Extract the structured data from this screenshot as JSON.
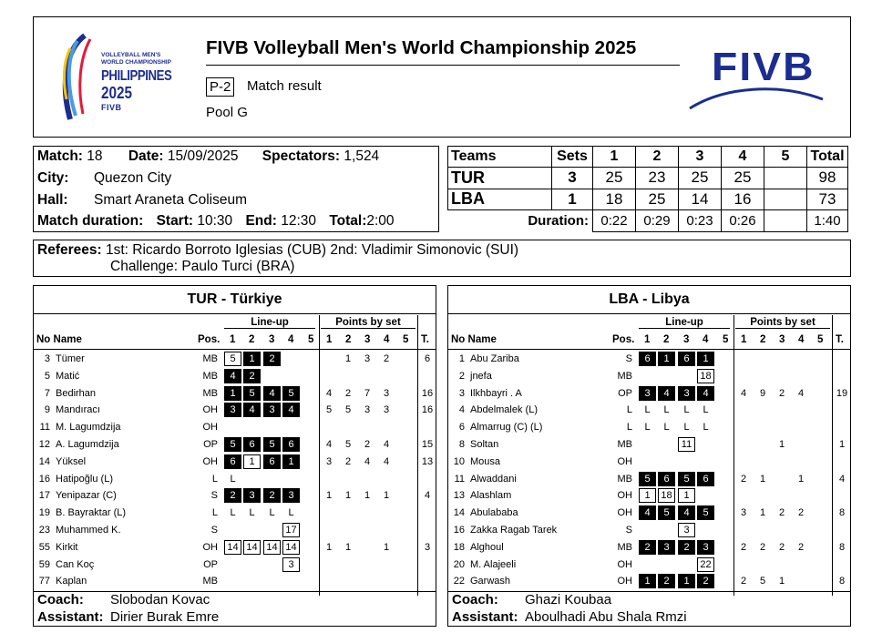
{
  "header": {
    "event_logo": {
      "line1": "VOLLEYBALL MEN'S",
      "line2": "WORLD CHAMPIONSHIP",
      "line3": "PHILIPPINES",
      "line4": "2025",
      "line5": "FIVB"
    },
    "title": "FIVB Volleyball Men's World Championship 2025",
    "doc_code": "P-2",
    "doc_name": "Match result",
    "pool": "Pool G",
    "fivb_logo": "FIVB",
    "colors": {
      "brand": "#1b2d8f",
      "logo_red": "#e21b3c",
      "logo_yellow": "#f5c400"
    }
  },
  "match": {
    "match_label": "Match:",
    "match_no": "18",
    "date_label": "Date:",
    "date": "15/09/2025",
    "spectators_label": "Spectators:",
    "spectators": "1,524",
    "city_label": "City:",
    "city": "Quezon City",
    "hall_label": "Hall:",
    "hall": "Smart Araneta Coliseum",
    "duration_label": "Match duration:",
    "start_label": "Start:",
    "start": "10:30",
    "end_label": "End:",
    "end": "12:30",
    "total_label": "Total:",
    "total": "2:00"
  },
  "score": {
    "headers": [
      "Teams",
      "Sets",
      "1",
      "2",
      "3",
      "4",
      "5",
      "Total"
    ],
    "teams": [
      {
        "code": "TUR",
        "sets": "3",
        "s1": "25",
        "s2": "23",
        "s3": "25",
        "s4": "25",
        "s5": "",
        "total": "98"
      },
      {
        "code": "LBA",
        "sets": "1",
        "s1": "18",
        "s2": "25",
        "s3": "14",
        "s4": "16",
        "s5": "",
        "total": "73"
      }
    ],
    "duration_label": "Duration:",
    "durations": [
      "0:22",
      "0:29",
      "0:23",
      "0:26",
      "",
      "1:40"
    ]
  },
  "referees": {
    "label": "Referees:",
    "first": "1st: Ricardo Borroto Iglesias (CUB)",
    "second": "2nd: Vladimir Simonovic (SUI)",
    "challenge": "Challenge: Paulo Turci (BRA)"
  },
  "columns": {
    "no_name": "No Name",
    "pos": "Pos.",
    "lineup": "Line-up",
    "points": "Points by set",
    "sets": [
      "1",
      "2",
      "3",
      "4",
      "5"
    ],
    "total": "T."
  },
  "teams": [
    {
      "name": "TUR - Türkiye",
      "coach_label": "Coach:",
      "coach": "Slobodan Kovac",
      "assistant_label": "Assistant:",
      "assistant": "Dirier Burak Emre",
      "players": [
        {
          "no": "3",
          "name": "Tümer",
          "pos": "MB",
          "lineup": [
            [
              "5",
              "sub"
            ],
            [
              "1",
              "start"
            ],
            [
              "2",
              "start"
            ],
            null,
            null
          ],
          "points": [
            "",
            "1",
            "3",
            "2",
            ""
          ],
          "total": "6"
        },
        {
          "no": "5",
          "name": "Matić",
          "pos": "MB",
          "lineup": [
            [
              "4",
              "start"
            ],
            [
              "2",
              "start"
            ],
            null,
            null,
            null
          ],
          "points": [
            "",
            "",
            "",
            "",
            ""
          ],
          "total": ""
        },
        {
          "no": "7",
          "name": "Bedirhan",
          "pos": "MB",
          "lineup": [
            [
              "1",
              "start"
            ],
            [
              "5",
              "start"
            ],
            [
              "4",
              "start"
            ],
            [
              "5",
              "start"
            ],
            null
          ],
          "points": [
            "4",
            "2",
            "7",
            "3",
            ""
          ],
          "total": "16"
        },
        {
          "no": "9",
          "name": "Mandıracı",
          "pos": "OH",
          "lineup": [
            [
              "3",
              "start"
            ],
            [
              "4",
              "start"
            ],
            [
              "3",
              "start"
            ],
            [
              "4",
              "start"
            ],
            null
          ],
          "points": [
            "5",
            "5",
            "3",
            "3",
            ""
          ],
          "total": "16"
        },
        {
          "no": "11",
          "name": "M. Lagumdzija",
          "pos": "OH",
          "lineup": [
            null,
            null,
            null,
            null,
            null
          ],
          "points": [
            "",
            "",
            "",
            "",
            ""
          ],
          "total": ""
        },
        {
          "no": "12",
          "name": "A. Lagumdzija",
          "pos": "OP",
          "lineup": [
            [
              "5",
              "start"
            ],
            [
              "6",
              "start"
            ],
            [
              "5",
              "start"
            ],
            [
              "6",
              "start"
            ],
            null
          ],
          "points": [
            "4",
            "5",
            "2",
            "4",
            ""
          ],
          "total": "15"
        },
        {
          "no": "14",
          "name": "Yüksel",
          "pos": "OH",
          "lineup": [
            [
              "6",
              "start"
            ],
            [
              "1",
              "sub"
            ],
            [
              "6",
              "start"
            ],
            [
              "1",
              "start"
            ],
            null
          ],
          "points": [
            "3",
            "2",
            "4",
            "4",
            ""
          ],
          "total": "13"
        },
        {
          "no": "16",
          "name": "Hatipoğlu (L)",
          "pos": "L",
          "lineup": [
            [
              "L",
              "lib"
            ],
            null,
            null,
            null,
            null
          ],
          "points": [
            "",
            "",
            "",
            "",
            ""
          ],
          "total": ""
        },
        {
          "no": "17",
          "name": "Yenipazar (C)",
          "pos": "S",
          "lineup": [
            [
              "2",
              "start"
            ],
            [
              "3",
              "start"
            ],
            [
              "2",
              "start"
            ],
            [
              "3",
              "start"
            ],
            null
          ],
          "points": [
            "1",
            "1",
            "1",
            "1",
            ""
          ],
          "total": "4"
        },
        {
          "no": "19",
          "name": "B. Bayraktar (L)",
          "pos": "L",
          "lineup": [
            [
              "L",
              "lib"
            ],
            [
              "L",
              "lib"
            ],
            [
              "L",
              "lib"
            ],
            [
              "L",
              "lib"
            ],
            null
          ],
          "points": [
            "",
            "",
            "",
            "",
            ""
          ],
          "total": ""
        },
        {
          "no": "23",
          "name": "Muhammed K.",
          "pos": "S",
          "lineup": [
            null,
            null,
            null,
            [
              "17",
              "sub"
            ],
            null
          ],
          "points": [
            "",
            "",
            "",
            "",
            ""
          ],
          "total": ""
        },
        {
          "no": "55",
          "name": "Kirkit",
          "pos": "OH",
          "lineup": [
            [
              "14",
              "sub"
            ],
            [
              "14",
              "sub"
            ],
            [
              "14",
              "sub"
            ],
            [
              "14",
              "sub"
            ],
            null
          ],
          "points": [
            "1",
            "1",
            "",
            "1",
            ""
          ],
          "total": "3"
        },
        {
          "no": "59",
          "name": "Can Koç",
          "pos": "OP",
          "lineup": [
            null,
            null,
            null,
            [
              "3",
              "sub"
            ],
            null
          ],
          "points": [
            "",
            "",
            "",
            "",
            ""
          ],
          "total": ""
        },
        {
          "no": "77",
          "name": "Kaplan",
          "pos": "MB",
          "lineup": [
            null,
            null,
            null,
            null,
            null
          ],
          "points": [
            "",
            "",
            "",
            "",
            ""
          ],
          "total": ""
        }
      ]
    },
    {
      "name": "LBA - Libya",
      "coach_label": "Coach:",
      "coach": "Ghazi Koubaa",
      "assistant_label": "Assistant:",
      "assistant": "Aboulhadi Abu Shala Rmzi",
      "players": [
        {
          "no": "1",
          "name": "Abu Zariba",
          "pos": "S",
          "lineup": [
            [
              "6",
              "start"
            ],
            [
              "1",
              "start"
            ],
            [
              "6",
              "start"
            ],
            [
              "1",
              "start"
            ],
            null
          ],
          "points": [
            "",
            "",
            "",
            "",
            ""
          ],
          "total": ""
        },
        {
          "no": "2",
          "name": "jnefa",
          "pos": "MB",
          "lineup": [
            null,
            null,
            null,
            [
              "18",
              "sub"
            ],
            null
          ],
          "points": [
            "",
            "",
            "",
            "",
            ""
          ],
          "total": ""
        },
        {
          "no": "3",
          "name": "Ilkhbayri . A",
          "pos": "OP",
          "lineup": [
            [
              "3",
              "start"
            ],
            [
              "4",
              "start"
            ],
            [
              "3",
              "start"
            ],
            [
              "4",
              "start"
            ],
            null
          ],
          "points": [
            "4",
            "9",
            "2",
            "4",
            ""
          ],
          "total": "19"
        },
        {
          "no": "4",
          "name": "Abdelmalek (L)",
          "pos": "L",
          "lineup": [
            [
              "L",
              "lib"
            ],
            [
              "L",
              "lib"
            ],
            [
              "L",
              "lib"
            ],
            [
              "L",
              "lib"
            ],
            null
          ],
          "points": [
            "",
            "",
            "",
            "",
            ""
          ],
          "total": ""
        },
        {
          "no": "6",
          "name": "Almarrug (C) (L)",
          "pos": "L",
          "lineup": [
            [
              "L",
              "lib"
            ],
            [
              "L",
              "lib"
            ],
            [
              "L",
              "lib"
            ],
            [
              "L",
              "lib"
            ],
            null
          ],
          "points": [
            "",
            "",
            "",
            "",
            ""
          ],
          "total": ""
        },
        {
          "no": "8",
          "name": "Soltan",
          "pos": "MB",
          "lineup": [
            null,
            null,
            [
              "11",
              "sub"
            ],
            null,
            null
          ],
          "points": [
            "",
            "",
            "1",
            "",
            ""
          ],
          "total": "1"
        },
        {
          "no": "10",
          "name": "Mousa",
          "pos": "OH",
          "lineup": [
            null,
            null,
            null,
            null,
            null
          ],
          "points": [
            "",
            "",
            "",
            "",
            ""
          ],
          "total": ""
        },
        {
          "no": "11",
          "name": "Alwaddani",
          "pos": "MB",
          "lineup": [
            [
              "5",
              "start"
            ],
            [
              "6",
              "start"
            ],
            [
              "5",
              "start"
            ],
            [
              "6",
              "start"
            ],
            null
          ],
          "points": [
            "2",
            "1",
            "",
            "1",
            ""
          ],
          "total": "4"
        },
        {
          "no": "13",
          "name": "Alashlam",
          "pos": "OH",
          "lineup": [
            [
              "1",
              "sub"
            ],
            [
              "18",
              "sub"
            ],
            [
              "1",
              "sub"
            ],
            null,
            null
          ],
          "points": [
            "",
            "",
            "",
            "",
            ""
          ],
          "total": ""
        },
        {
          "no": "14",
          "name": "Abulababa",
          "pos": "OH",
          "lineup": [
            [
              "4",
              "start"
            ],
            [
              "5",
              "start"
            ],
            [
              "4",
              "start"
            ],
            [
              "5",
              "start"
            ],
            null
          ],
          "points": [
            "3",
            "1",
            "2",
            "2",
            ""
          ],
          "total": "8"
        },
        {
          "no": "16",
          "name": "Zakka Ragab Tarek",
          "pos": "S",
          "lineup": [
            null,
            null,
            [
              "3",
              "sub"
            ],
            null,
            null
          ],
          "points": [
            "",
            "",
            "",
            "",
            ""
          ],
          "total": ""
        },
        {
          "no": "18",
          "name": "Alghoul",
          "pos": "MB",
          "lineup": [
            [
              "2",
              "start"
            ],
            [
              "3",
              "start"
            ],
            [
              "2",
              "start"
            ],
            [
              "3",
              "start"
            ],
            null
          ],
          "points": [
            "2",
            "2",
            "2",
            "2",
            ""
          ],
          "total": "8"
        },
        {
          "no": "20",
          "name": "M. Alajeeli",
          "pos": "OH",
          "lineup": [
            null,
            null,
            null,
            [
              "22",
              "sub"
            ],
            null
          ],
          "points": [
            "",
            "",
            "",
            "",
            ""
          ],
          "total": ""
        },
        {
          "no": "22",
          "name": "Garwash",
          "pos": "OH",
          "lineup": [
            [
              "1",
              "start"
            ],
            [
              "2",
              "start"
            ],
            [
              "1",
              "start"
            ],
            [
              "2",
              "start"
            ],
            null
          ],
          "points": [
            "2",
            "5",
            "1",
            "",
            ""
          ],
          "total": "8"
        }
      ]
    }
  ]
}
